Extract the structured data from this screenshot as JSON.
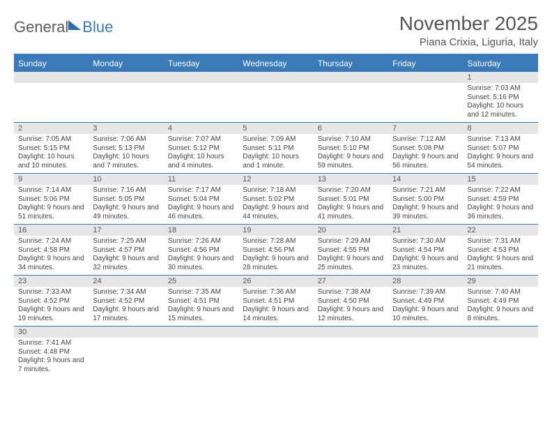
{
  "logo": {
    "part1": "General",
    "part2": "Blue"
  },
  "title": "November 2025",
  "location": "Piana Crixia, Liguria, Italy",
  "colors": {
    "accent": "#3a7ab8",
    "header_bg": "#3a7ab8",
    "header_text": "#ffffff",
    "daynum_bg": "#e6e6e6",
    "text": "#444444",
    "background": "#ffffff"
  },
  "day_headers": [
    "Sunday",
    "Monday",
    "Tuesday",
    "Wednesday",
    "Thursday",
    "Friday",
    "Saturday"
  ],
  "weeks": [
    [
      null,
      null,
      null,
      null,
      null,
      null,
      {
        "n": "1",
        "sr": "7:03 AM",
        "ss": "5:16 PM",
        "dl": "10 hours and 12 minutes."
      }
    ],
    [
      {
        "n": "2",
        "sr": "7:05 AM",
        "ss": "5:15 PM",
        "dl": "10 hours and 10 minutes."
      },
      {
        "n": "3",
        "sr": "7:06 AM",
        "ss": "5:13 PM",
        "dl": "10 hours and 7 minutes."
      },
      {
        "n": "4",
        "sr": "7:07 AM",
        "ss": "5:12 PM",
        "dl": "10 hours and 4 minutes."
      },
      {
        "n": "5",
        "sr": "7:09 AM",
        "ss": "5:11 PM",
        "dl": "10 hours and 1 minute."
      },
      {
        "n": "6",
        "sr": "7:10 AM",
        "ss": "5:10 PM",
        "dl": "9 hours and 59 minutes."
      },
      {
        "n": "7",
        "sr": "7:12 AM",
        "ss": "5:08 PM",
        "dl": "9 hours and 56 minutes."
      },
      {
        "n": "8",
        "sr": "7:13 AM",
        "ss": "5:07 PM",
        "dl": "9 hours and 54 minutes."
      }
    ],
    [
      {
        "n": "9",
        "sr": "7:14 AM",
        "ss": "5:06 PM",
        "dl": "9 hours and 51 minutes."
      },
      {
        "n": "10",
        "sr": "7:16 AM",
        "ss": "5:05 PM",
        "dl": "9 hours and 49 minutes."
      },
      {
        "n": "11",
        "sr": "7:17 AM",
        "ss": "5:04 PM",
        "dl": "9 hours and 46 minutes."
      },
      {
        "n": "12",
        "sr": "7:18 AM",
        "ss": "5:02 PM",
        "dl": "9 hours and 44 minutes."
      },
      {
        "n": "13",
        "sr": "7:20 AM",
        "ss": "5:01 PM",
        "dl": "9 hours and 41 minutes."
      },
      {
        "n": "14",
        "sr": "7:21 AM",
        "ss": "5:00 PM",
        "dl": "9 hours and 39 minutes."
      },
      {
        "n": "15",
        "sr": "7:22 AM",
        "ss": "4:59 PM",
        "dl": "9 hours and 36 minutes."
      }
    ],
    [
      {
        "n": "16",
        "sr": "7:24 AM",
        "ss": "4:58 PM",
        "dl": "9 hours and 34 minutes."
      },
      {
        "n": "17",
        "sr": "7:25 AM",
        "ss": "4:57 PM",
        "dl": "9 hours and 32 minutes."
      },
      {
        "n": "18",
        "sr": "7:26 AM",
        "ss": "4:56 PM",
        "dl": "9 hours and 30 minutes."
      },
      {
        "n": "19",
        "sr": "7:28 AM",
        "ss": "4:56 PM",
        "dl": "9 hours and 28 minutes."
      },
      {
        "n": "20",
        "sr": "7:29 AM",
        "ss": "4:55 PM",
        "dl": "9 hours and 25 minutes."
      },
      {
        "n": "21",
        "sr": "7:30 AM",
        "ss": "4:54 PM",
        "dl": "9 hours and 23 minutes."
      },
      {
        "n": "22",
        "sr": "7:31 AM",
        "ss": "4:53 PM",
        "dl": "9 hours and 21 minutes."
      }
    ],
    [
      {
        "n": "23",
        "sr": "7:33 AM",
        "ss": "4:52 PM",
        "dl": "9 hours and 19 minutes."
      },
      {
        "n": "24",
        "sr": "7:34 AM",
        "ss": "4:52 PM",
        "dl": "9 hours and 17 minutes."
      },
      {
        "n": "25",
        "sr": "7:35 AM",
        "ss": "4:51 PM",
        "dl": "9 hours and 15 minutes."
      },
      {
        "n": "26",
        "sr": "7:36 AM",
        "ss": "4:51 PM",
        "dl": "9 hours and 14 minutes."
      },
      {
        "n": "27",
        "sr": "7:38 AM",
        "ss": "4:50 PM",
        "dl": "9 hours and 12 minutes."
      },
      {
        "n": "28",
        "sr": "7:39 AM",
        "ss": "4:49 PM",
        "dl": "9 hours and 10 minutes."
      },
      {
        "n": "29",
        "sr": "7:40 AM",
        "ss": "4:49 PM",
        "dl": "9 hours and 8 minutes."
      }
    ],
    [
      {
        "n": "30",
        "sr": "7:41 AM",
        "ss": "4:48 PM",
        "dl": "9 hours and 7 minutes."
      },
      null,
      null,
      null,
      null,
      null,
      null
    ]
  ],
  "labels": {
    "sunrise": "Sunrise: ",
    "sunset": "Sunset: ",
    "daylight": "Daylight: "
  }
}
